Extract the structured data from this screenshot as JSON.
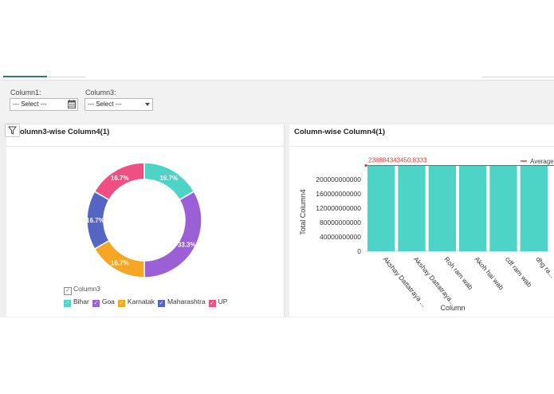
{
  "filters": {
    "column1": {
      "label": "Column1:",
      "value": "--- Select ---"
    },
    "column3": {
      "label": "Column3:",
      "value": "--- Select ---"
    }
  },
  "left_panel": {
    "title": "Column3-wise Column4(1)"
  },
  "right_panel": {
    "title": "Column-wise Column4(1)"
  },
  "legend": {
    "title": "Column3",
    "items": [
      {
        "label": "Bihar",
        "color": "#4dd4c6"
      },
      {
        "label": "Goa",
        "color": "#9b5fd6"
      },
      {
        "label": "Karnatak",
        "color": "#f5a623"
      },
      {
        "label": "Maharashtra",
        "color": "#5465c4"
      },
      {
        "label": "UP",
        "color": "#ef4f82"
      }
    ]
  },
  "chart_data": [
    {
      "type": "pie",
      "title": "Column3-wise Column4(1)",
      "labels": [
        "Bihar",
        "Goa",
        "Karnatak",
        "Maharashtra",
        "UP"
      ],
      "values": [
        16.7,
        33.3,
        16.7,
        16.7,
        16.7
      ],
      "value_labels": [
        "16.7%",
        "33.3%",
        "16.7%",
        "16.7%",
        "16.7%"
      ],
      "colors": [
        "#4dd4c6",
        "#9b5fd6",
        "#f5a623",
        "#5465c4",
        "#ef4f82"
      ],
      "donut": true,
      "legend_position": "bottom-left"
    },
    {
      "type": "bar",
      "title": "Column-wise Column4(1)",
      "categories": [
        "Akshay Dattatraya ...",
        "Akshay Dattatraya...",
        "Roh ram wab",
        "Akoh hai wab",
        "cdf ram wab",
        "dhg ra..."
      ],
      "values": [
        238884343450.8333,
        238884343450.8333,
        238884343450.8333,
        238884343450.8333,
        238884343450.8333,
        238884343450.8333
      ],
      "xlabel": "Column",
      "ylabel": "Total Column4",
      "yticks": [
        "0",
        "40000000000",
        "80000000000",
        "120000000000",
        "160000000000",
        "200000000000"
      ],
      "ylim": [
        0,
        240000000000
      ],
      "color": "#4dd4c6",
      "average": {
        "label": "Average",
        "value_text": "238884343450.8333",
        "value": 238884343450.8333,
        "color": "#e53935"
      }
    }
  ]
}
